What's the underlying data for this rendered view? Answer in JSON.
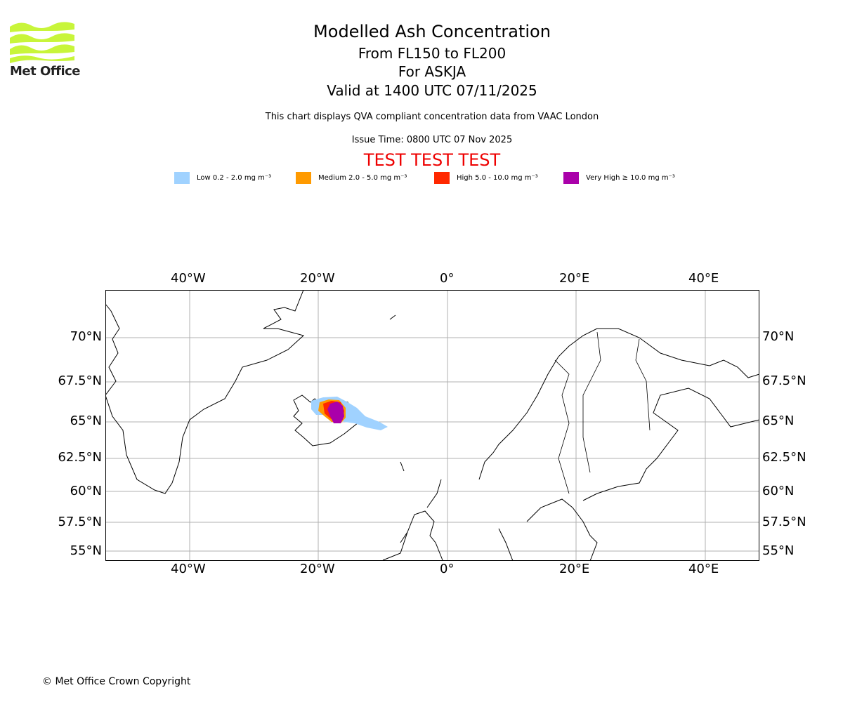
{
  "logo": {
    "text": "Met Office",
    "color": "#c8f53a"
  },
  "title": {
    "main": "Modelled Ash Concentration",
    "levels": "From FL150 to FL200",
    "volcano": "For ASKJA",
    "valid": "Valid at 1400 UTC 07/11/2025"
  },
  "subtitle": "This chart displays QVA compliant concentration data from VAAC London",
  "issue_time": "Issue Time: 0800 UTC 07 Nov 2025",
  "test_banner": "TEST TEST TEST",
  "legend": [
    {
      "label": "Low 0.2 - 2.0 mg m⁻³",
      "color": "#a0d2ff"
    },
    {
      "label": "Medium 2.0 - 5.0 mg m⁻³",
      "color": "#ff9a00"
    },
    {
      "label": "High 5.0 - 10.0 mg m⁻³",
      "color": "#ff2800"
    },
    {
      "label": "Very High ≥ 10.0 mg m⁻³",
      "color": "#aa00aa"
    }
  ],
  "map": {
    "lon_ticks": [
      "40°W",
      "20°W",
      "0°",
      "20°E",
      "40°E"
    ],
    "lat_ticks": [
      "70°N",
      "67.5°N",
      "65°N",
      "62.5°N",
      "60°N",
      "57.5°N",
      "55°N"
    ]
  },
  "copyright": "© Met Office Crown Copyright"
}
